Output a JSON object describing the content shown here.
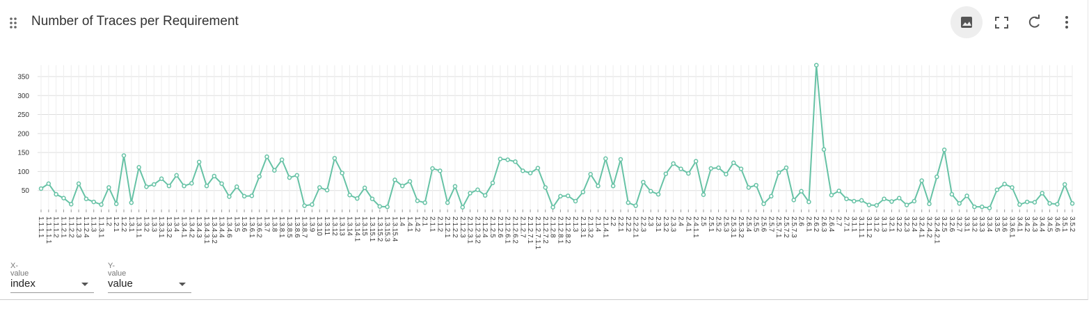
{
  "chart_data": {
    "type": "line",
    "title": "Number of Traces per Requirement",
    "color": "#66c2a5",
    "grid": true,
    "categories": [
      "1.1.1.1",
      "1.1.1.1.1",
      "1.1.1.2",
      "1.1.2.1",
      "1.1.2.2",
      "1.1.2.3",
      "1.1.2.4",
      "1.1.3",
      "1.1.3.1",
      "1.2",
      "1.2.1",
      "1.2.2",
      "1.3.1",
      "1.3.1.1",
      "1.3.2",
      "1.3.3",
      "1.3.3.1",
      "1.3.3.2",
      "1.3.4",
      "1.3.4.1",
      "1.3.4.2",
      "1.3.4.3",
      "1.3.4.3.1",
      "1.3.4.3.2",
      "1.3.4.4",
      "1.3.4.6",
      "1.3.5",
      "1.3.6",
      "1.3.6.1",
      "1.3.6.2",
      "1.3.7",
      "1.3.8",
      "1.3.8.1",
      "1.3.8.5",
      "1.3.8.6",
      "1.3.8.7",
      "1.3.9",
      "1.3.10",
      "1.3.11",
      "1.3.12",
      "1.3.13",
      "1.3.14",
      "1.3.14.1",
      "1.3.15",
      "1.3.15.1",
      "1.3.15.2",
      "1.3.15.3",
      "1.3.15.4",
      "1.4",
      "1.4.1",
      "1.4.2",
      "2.1",
      "2.1.1",
      "2.1.2",
      "2.1.2.1",
      "2.1.2.2",
      "2.1.2.3",
      "2.1.2.3.1",
      "2.1.2.3.2",
      "2.1.2.4",
      "2.1.2.5",
      "2.1.2.6",
      "2.1.2.6.1",
      "2.1.2.6.2",
      "2.1.2.7",
      "2.1.2.7.1",
      "2.1.2.7.1.1",
      "2.1.2.7.2",
      "2.1.2.8",
      "2.1.2.8.1",
      "2.1.2.8.2",
      "2.1.3",
      "2.1.3.1",
      "2.1.3.2",
      "2.1.4",
      "2.1.4.1",
      "2.2",
      "2.2.1",
      "2.2.2",
      "2.2.2.1",
      "2.2.3",
      "2.3",
      "2.3.1",
      "2.3.2",
      "2.3.3",
      "2.4",
      "2.4.1",
      "2.4.1.1",
      "2.5",
      "2.5.1",
      "2.5.2",
      "2.5.3",
      "2.5.3.1",
      "2.5.3.2",
      "2.5.4",
      "2.5.5",
      "2.5.6",
      "2.5.7",
      "2.5.7.1",
      "2.5.7.2",
      "2.5.7.3",
      "2.6",
      "2.6.1",
      "2.6.2",
      "2.6.3",
      "2.6.4",
      "2.7",
      "2.7.1",
      "3.1.1",
      "3.1.1.1",
      "3.1.1.2",
      "3.1.2",
      "3.1.3",
      "3.2.1",
      "3.2.2",
      "3.2.3",
      "3.2.4",
      "3.2.4.1",
      "3.2.4.2",
      "3.2.4.2.1",
      "3.2.5",
      "3.2.6",
      "3.2.7",
      "3.3.1",
      "3.3.2",
      "3.3.3",
      "3.3.4",
      "3.3.5",
      "3.3.6",
      "3.3.6.1",
      "3.4.1",
      "3.4.2",
      "3.4.3",
      "3.4.4",
      "3.4.5",
      "3.4.6",
      "3.5.1",
      "3.5.2"
    ],
    "values": [
      55,
      68,
      40,
      30,
      14,
      68,
      28,
      20,
      13,
      58,
      15,
      142,
      18,
      111,
      60,
      66,
      81,
      62,
      90,
      62,
      69,
      125,
      62,
      88,
      68,
      34,
      60,
      35,
      36,
      87,
      139,
      103,
      131,
      84,
      90,
      10,
      13,
      58,
      51,
      135,
      96,
      38,
      29,
      57,
      28,
      8,
      7,
      78,
      62,
      74,
      23,
      18,
      108,
      102,
      18,
      61,
      6,
      43,
      52,
      37,
      70,
      133,
      131,
      126,
      102,
      96,
      109,
      58,
      6,
      35,
      36,
      22,
      46,
      93,
      62,
      134,
      62,
      132,
      18,
      10,
      72,
      48,
      40,
      94,
      121,
      107,
      95,
      127,
      39,
      108,
      110,
      93,
      123,
      107,
      58,
      64,
      15,
      35,
      97,
      110,
      25,
      48,
      20,
      380,
      158,
      38,
      49,
      28,
      22,
      24,
      12,
      11,
      28,
      21,
      30,
      12,
      22,
      76,
      15,
      86,
      157,
      40,
      16,
      36,
      7,
      7,
      4,
      52,
      67,
      58,
      13,
      20,
      19,
      43,
      16,
      14,
      66,
      16
    ],
    "ylim": [
      0,
      380
    ],
    "yticks": [
      50,
      100,
      150,
      200,
      250,
      300,
      350
    ]
  },
  "controls": {
    "x_label": "X-value",
    "x_value": "index",
    "y_label": "Y-value",
    "y_value": "value"
  }
}
